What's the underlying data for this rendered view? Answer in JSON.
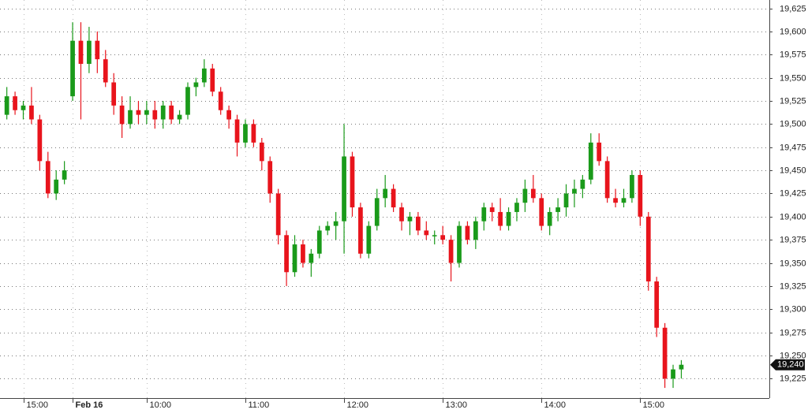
{
  "chart_data": {
    "type": "candlestick",
    "up_color": "#1a9a1a",
    "down_color": "#e8141c",
    "grid": true,
    "ylim": [
      19204,
      19634
    ],
    "yticks": [
      {
        "value": 19225,
        "label": "19,225"
      },
      {
        "value": 19250,
        "label": "19,250"
      },
      {
        "value": 19275,
        "label": "19,275"
      },
      {
        "value": 19300,
        "label": "19,300"
      },
      {
        "value": 19325,
        "label": "19,325"
      },
      {
        "value": 19350,
        "label": "19,350"
      },
      {
        "value": 19375,
        "label": "19,375"
      },
      {
        "value": 19400,
        "label": "19,400"
      },
      {
        "value": 19425,
        "label": "19,425"
      },
      {
        "value": 19450,
        "label": "19,450"
      },
      {
        "value": 19475,
        "label": "19,475"
      },
      {
        "value": 19500,
        "label": "19,500"
      },
      {
        "value": 19525,
        "label": "19,525"
      },
      {
        "value": 19550,
        "label": "19,550"
      },
      {
        "value": 19575,
        "label": "19,575"
      },
      {
        "value": 19600,
        "label": "19,600"
      },
      {
        "value": 19625,
        "label": "19,625"
      }
    ],
    "xlim": [
      -0.83,
      92.7
    ],
    "xticks": [
      {
        "value": 2,
        "label": "15:00"
      },
      {
        "value": 8,
        "label": "Feb 16"
      },
      {
        "value": 17,
        "label": "10:00"
      },
      {
        "value": 29,
        "label": "11:00"
      },
      {
        "value": 41,
        "label": "12:00"
      },
      {
        "value": 53,
        "label": "13:00"
      },
      {
        "value": 65,
        "label": "14:00"
      },
      {
        "value": 77,
        "label": "15:00"
      }
    ],
    "last_price": {
      "value": 19240,
      "label": "19,240"
    },
    "open": [
      19510,
      19530,
      19515,
      19520,
      19505,
      19460,
      19425,
      19440,
      19530,
      19590,
      19565,
      19590,
      19570,
      19545,
      19520,
      19500,
      19515,
      19510,
      19515,
      19505,
      19520,
      19505,
      19510,
      19540,
      19545,
      19560,
      19535,
      19515,
      19505,
      19480,
      19500,
      19480,
      19460,
      19425,
      19380,
      19340,
      19370,
      19350,
      19360,
      19385,
      19390,
      19395,
      19465,
      19410,
      19360,
      19390,
      19420,
      19430,
      19410,
      19395,
      19400,
      19385,
      19380,
      19380,
      19375,
      19350,
      19390,
      19375,
      19395,
      19410,
      19405,
      19390,
      19405,
      19415,
      19430,
      19420,
      19390,
      19405,
      19410,
      19425,
      19430,
      19440,
      19480,
      19460,
      19420,
      19415,
      19420,
      19445,
      19400,
      19330,
      19280,
      19225,
      19235
    ],
    "high": [
      19540,
      19535,
      19525,
      19540,
      19510,
      19470,
      19450,
      19460,
      19610,
      19610,
      19605,
      19600,
      19580,
      19555,
      19530,
      19530,
      19525,
      19525,
      19525,
      19525,
      19525,
      19515,
      19545,
      19550,
      19570,
      19565,
      19540,
      19520,
      19510,
      19505,
      19505,
      19485,
      19465,
      19430,
      19385,
      19380,
      19375,
      19365,
      19390,
      19395,
      19405,
      19500,
      19470,
      19415,
      19395,
      19430,
      19445,
      19435,
      19415,
      19405,
      19405,
      19395,
      19385,
      19390,
      19380,
      19395,
      19395,
      19400,
      19415,
      19415,
      19420,
      19410,
      19420,
      19440,
      19445,
      19425,
      19410,
      19420,
      19435,
      19440,
      19445,
      19490,
      19490,
      19465,
      19430,
      19430,
      19450,
      19450,
      19405,
      19335,
      19285,
      19240,
      19245
    ],
    "low": [
      19505,
      19510,
      19505,
      19500,
      19450,
      19420,
      19418,
      19435,
      19525,
      19505,
      19555,
      19555,
      19540,
      19510,
      19485,
      19495,
      19500,
      19500,
      19495,
      19495,
      19500,
      19500,
      19505,
      19530,
      19540,
      19530,
      19510,
      19495,
      19465,
      19475,
      19475,
      19450,
      19415,
      19370,
      19325,
      19335,
      19345,
      19335,
      19355,
      19380,
      19375,
      19360,
      19400,
      19355,
      19355,
      19385,
      19410,
      19405,
      19385,
      19380,
      19380,
      19375,
      19370,
      19370,
      19330,
      19345,
      19370,
      19365,
      19385,
      19395,
      19385,
      19385,
      19395,
      19405,
      19415,
      19385,
      19380,
      19395,
      19400,
      19410,
      19420,
      19435,
      19455,
      19415,
      19410,
      19410,
      19415,
      19390,
      19320,
      19270,
      19215,
      19215,
      19225
    ],
    "close": [
      19530,
      19515,
      19520,
      19505,
      19460,
      19425,
      19440,
      19450,
      19590,
      19565,
      19590,
      19570,
      19545,
      19520,
      19500,
      19515,
      19510,
      19515,
      19505,
      19520,
      19505,
      19510,
      19540,
      19545,
      19560,
      19535,
      19515,
      19505,
      19480,
      19500,
      19480,
      19460,
      19425,
      19380,
      19340,
      19370,
      19350,
      19360,
      19385,
      19390,
      19395,
      19465,
      19410,
      19360,
      19390,
      19420,
      19430,
      19410,
      19395,
      19400,
      19385,
      19380,
      19380,
      19375,
      19350,
      19390,
      19375,
      19395,
      19410,
      19405,
      19390,
      19405,
      19415,
      19430,
      19420,
      19390,
      19405,
      19410,
      19425,
      19430,
      19440,
      19480,
      19460,
      19420,
      19415,
      19420,
      19445,
      19400,
      19330,
      19280,
      19225,
      19235,
      19240
    ]
  }
}
